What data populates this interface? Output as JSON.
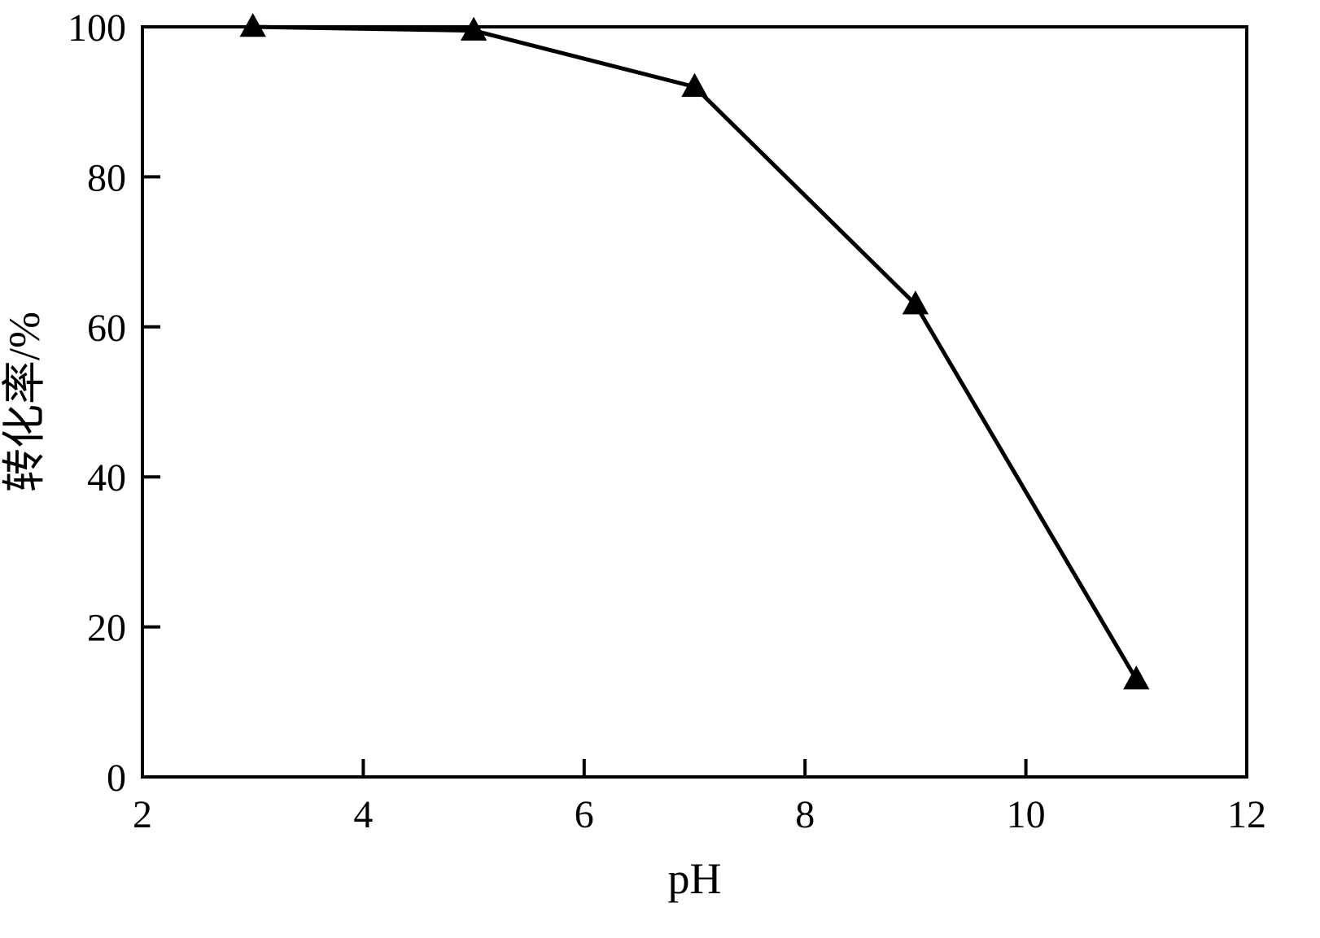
{
  "chart_data": {
    "type": "line",
    "title": "",
    "xlabel": "pH",
    "ylabel": "转化率/%",
    "x": [
      3,
      5,
      7,
      9,
      11
    ],
    "series": [
      {
        "name": "conversion-rate",
        "values": [
          100,
          99.5,
          92,
          63,
          13
        ]
      }
    ],
    "xlim": [
      2,
      12
    ],
    "ylim": [
      0,
      100
    ],
    "x_ticks": [
      2,
      4,
      6,
      8,
      10,
      12
    ],
    "y_ticks": [
      0,
      20,
      40,
      60,
      80,
      100
    ],
    "marker": "filled-triangle-up",
    "line_color": "#000000",
    "marker_color": "#000000",
    "frame_color": "#000000",
    "background_color": "#ffffff",
    "grid": false,
    "legend": false
  }
}
